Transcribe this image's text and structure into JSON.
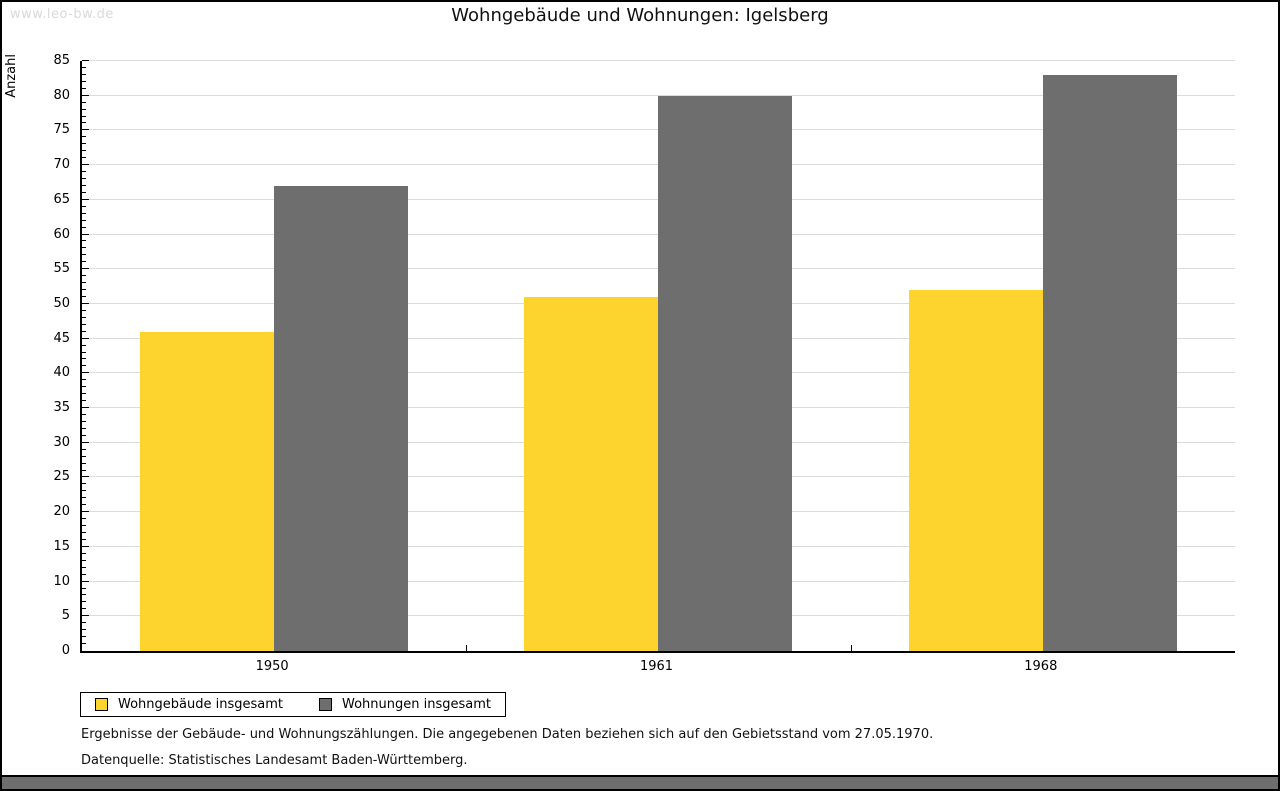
{
  "watermark": "www.leo-bw.de",
  "title": "Wohngebäude und Wohnungen: Igelsberg",
  "chart_data": {
    "type": "bar",
    "title": "Wohngebäude und Wohnungen: Igelsberg",
    "categories": [
      "1950",
      "1961",
      "1968"
    ],
    "series": [
      {
        "name": "Wohngebäude insgesamt",
        "color": "#fcd42d",
        "values": [
          46,
          51,
          52
        ]
      },
      {
        "name": "Wohnungen insgesamt",
        "color": "#6e6e6e",
        "values": [
          67,
          80,
          83
        ]
      }
    ],
    "xlabel": "",
    "ylabel": "Anzahl",
    "ylim": [
      0,
      85
    ],
    "y_major_step": 5,
    "y_minor_step": 1,
    "grid": true,
    "gridline_color": "#dcdcdc",
    "legend_position": "bottom-left"
  },
  "footer": {
    "line1": "Ergebnisse der Gebäude- und Wohnungszählungen. Die angegebenen Daten beziehen sich auf den Gebietsstand vom 27.05.1970.",
    "line2": "Datenquelle: Statistisches Landesamt Baden-Württemberg."
  }
}
